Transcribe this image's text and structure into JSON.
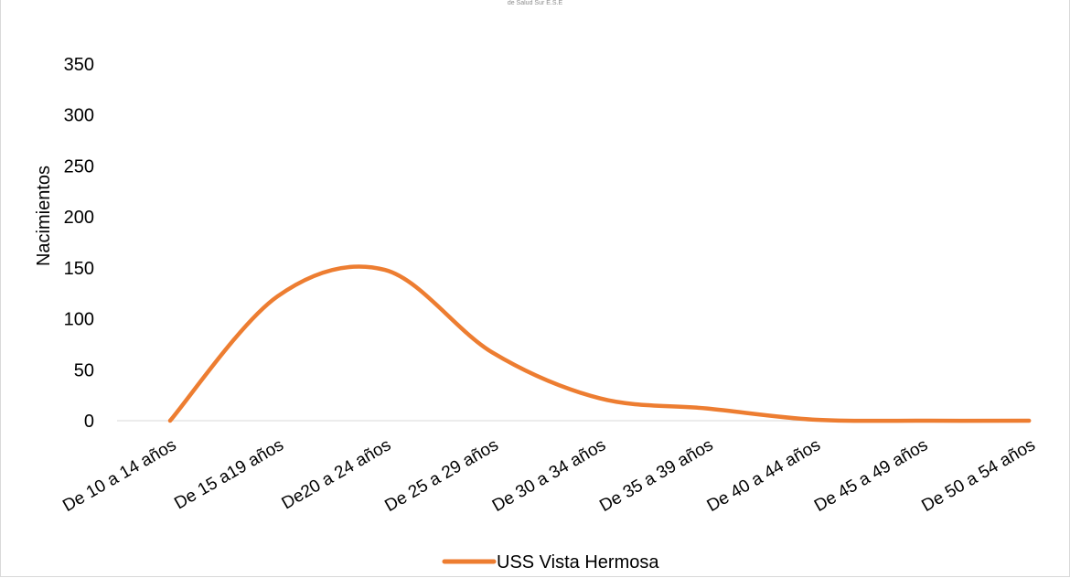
{
  "header": {
    "subtitle": "de Salud Sur E.S.E"
  },
  "chart_data": {
    "type": "line",
    "title": "",
    "subtitle": "de Salud Sur E.S.E",
    "xlabel": "",
    "ylabel": "Nacimientos",
    "ylim": [
      0,
      350
    ],
    "yticks": [
      0,
      50,
      100,
      150,
      200,
      250,
      300,
      350
    ],
    "grid": false,
    "smooth": true,
    "legend_position": "bottom",
    "categories": [
      "De 10 a 14 años",
      "De 15 a19 años",
      "De20 a 24 años",
      "De 25 a 29 años",
      "De 30 a 34 años",
      "De 35 a 39 años",
      "De 40 a 44 años",
      "De 45 a 49 años",
      "De 50 a 54 años"
    ],
    "series": [
      {
        "name": "USS Vista Hermosa",
        "color": "#ED7D31",
        "values": [
          0,
          122,
          148,
          67,
          22,
          12,
          1,
          0,
          0
        ]
      }
    ]
  }
}
